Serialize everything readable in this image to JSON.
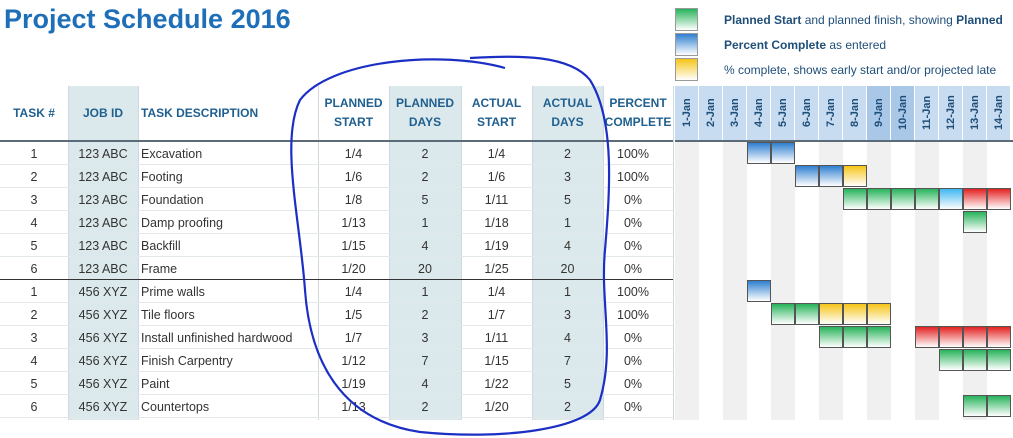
{
  "title": "Project Schedule 2016",
  "legend": [
    {
      "color": "#27b35a",
      "parts": [
        {
          "text": "Planned Start",
          "bold": true
        },
        {
          "text": " and planned finish, showing ",
          "bold": false
        },
        {
          "text": "Planned",
          "bold": true
        }
      ]
    },
    {
      "color": "#2f7fd0",
      "parts": [
        {
          "text": "Percent Complete",
          "bold": true
        },
        {
          "text": " as entered",
          "bold": false
        }
      ]
    },
    {
      "color": "#f5c518",
      "parts": [
        {
          "text": "% complete, shows early start and/or projected late",
          "bold": false
        }
      ]
    }
  ],
  "table": {
    "headers": [
      "TASK #",
      "JOB ID",
      "TASK DESCRIPTION",
      "PLANNED START",
      "PLANNED DAYS",
      "ACTUAL START",
      "ACTUAL DAYS",
      "PERCENT COMPLETE"
    ],
    "rows": [
      [
        1,
        "123 ABC",
        "Excavation",
        "1/4",
        2,
        "1/4",
        2,
        "100%"
      ],
      [
        2,
        "123 ABC",
        "Footing",
        "1/6",
        2,
        "1/6",
        3,
        "100%"
      ],
      [
        3,
        "123 ABC",
        "Foundation",
        "1/8",
        5,
        "1/11",
        5,
        "0%"
      ],
      [
        4,
        "123 ABC",
        "Damp proofing",
        "1/13",
        1,
        "1/18",
        1,
        "0%"
      ],
      [
        5,
        "123 ABC",
        "Backfill",
        "1/15",
        4,
        "1/19",
        4,
        "0%"
      ],
      [
        6,
        "123 ABC",
        "Frame",
        "1/20",
        20,
        "1/25",
        20,
        "0%"
      ],
      [
        1,
        "456 XYZ",
        "Prime walls",
        "1/4",
        1,
        "1/4",
        1,
        "100%"
      ],
      [
        2,
        "456 XYZ",
        "Tile floors",
        "1/5",
        2,
        "1/7",
        3,
        "100%"
      ],
      [
        3,
        "456 XYZ",
        "Install unfinished hardwood",
        "1/7",
        3,
        "1/11",
        4,
        "0%"
      ],
      [
        4,
        "456 XYZ",
        "Finish Carpentry",
        "1/12",
        7,
        "1/15",
        7,
        "0%"
      ],
      [
        5,
        "456 XYZ",
        "Paint",
        "1/19",
        4,
        "1/22",
        5,
        "0%"
      ],
      [
        6,
        "456 XYZ",
        "Countertops",
        "1/13",
        2,
        "1/20",
        2,
        "0%"
      ]
    ]
  },
  "gantt": {
    "dates": [
      "1-Jan",
      "2-Jan",
      "3-Jan",
      "4-Jan",
      "5-Jan",
      "6-Jan",
      "7-Jan",
      "8-Jan",
      "9-Jan",
      "10-Jan",
      "11-Jan",
      "12-Jan",
      "13-Jan",
      "14-Jan"
    ],
    "rows": [
      [
        {
          "start": 4,
          "days": 2,
          "color": "#2f7fd0"
        }
      ],
      [
        {
          "start": 6,
          "days": 2,
          "color": "#2f7fd0"
        },
        {
          "start": 8,
          "days": 1,
          "color": "#f5c518"
        }
      ],
      [
        {
          "start": 8,
          "days": 4,
          "color": "#27b35a"
        },
        {
          "start": 12,
          "days": 1,
          "color": "#3fb8f0"
        },
        {
          "start": 13,
          "days": 2,
          "color": "#e32222"
        }
      ],
      [
        {
          "start": 13,
          "days": 1,
          "color": "#27b35a"
        }
      ],
      [],
      [],
      [
        {
          "start": 4,
          "days": 1,
          "color": "#2f7fd0"
        }
      ],
      [
        {
          "start": 5,
          "days": 2,
          "color": "#27b35a"
        },
        {
          "start": 7,
          "days": 3,
          "color": "#f5c518"
        }
      ],
      [
        {
          "start": 7,
          "days": 3,
          "color": "#27b35a"
        },
        {
          "start": 11,
          "days": 4,
          "color": "#e32222"
        }
      ],
      [
        {
          "start": 12,
          "days": 3,
          "color": "#27b35a"
        }
      ],
      [],
      [
        {
          "start": 13,
          "days": 2,
          "color": "#27b35a"
        }
      ]
    ]
  }
}
